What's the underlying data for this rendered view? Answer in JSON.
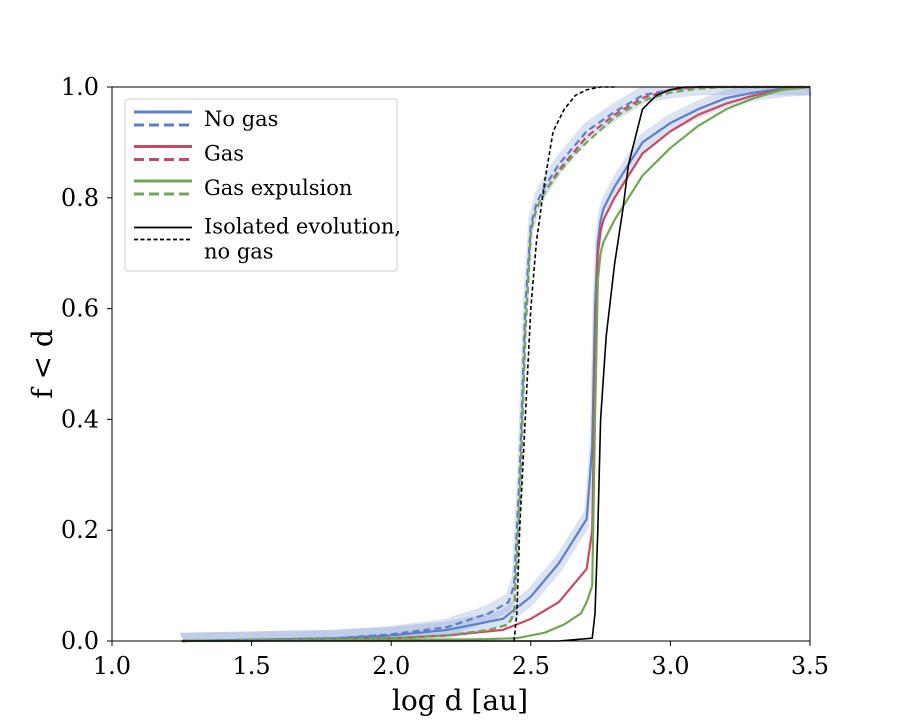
{
  "chart_data": {
    "type": "line",
    "title": "",
    "xlabel": "log d [au]",
    "ylabel": "f < d",
    "xlim": [
      1.0,
      3.5
    ],
    "ylim": [
      0.0,
      1.0
    ],
    "xticks": [
      "1.0",
      "1.5",
      "2.0",
      "2.5",
      "3.0",
      "3.5"
    ],
    "yticks": [
      "0.0",
      "0.2",
      "0.4",
      "0.6",
      "0.8",
      "1.0"
    ],
    "grid": false,
    "legend_position": "top-left",
    "legend": [
      {
        "label": "No gas",
        "color": "#5b7fc9"
      },
      {
        "label": "Gas",
        "color": "#c94a60"
      },
      {
        "label": "Gas expulsion",
        "color": "#6ea852"
      },
      {
        "label": "Isolated evolution,",
        "label2": "no gas",
        "color": "#000000"
      }
    ],
    "series": [
      {
        "name": "No gas (solid)",
        "color": "#5b7fc9",
        "style": "solid",
        "band": true,
        "x": [
          1.25,
          1.8,
          2.0,
          2.2,
          2.4,
          2.5,
          2.6,
          2.65,
          2.7,
          2.72,
          2.73,
          2.74,
          2.75,
          2.76,
          2.78,
          2.8,
          2.85,
          2.9,
          3.0,
          3.1,
          3.2,
          3.3,
          3.4,
          3.5
        ],
        "y": [
          0.0,
          0.005,
          0.01,
          0.02,
          0.04,
          0.08,
          0.14,
          0.18,
          0.22,
          0.35,
          0.6,
          0.72,
          0.76,
          0.78,
          0.8,
          0.82,
          0.86,
          0.9,
          0.935,
          0.96,
          0.98,
          0.99,
          0.997,
          1.0
        ]
      },
      {
        "name": "No gas (dashed)",
        "color": "#5b7fc9",
        "style": "dashed",
        "band": true,
        "x": [
          1.25,
          1.8,
          2.0,
          2.2,
          2.35,
          2.42,
          2.44,
          2.46,
          2.48,
          2.5,
          2.52,
          2.55,
          2.6,
          2.65,
          2.7,
          2.8,
          2.9,
          3.0,
          3.1,
          3.5
        ],
        "y": [
          0.0,
          0.005,
          0.012,
          0.025,
          0.05,
          0.07,
          0.1,
          0.3,
          0.6,
          0.75,
          0.79,
          0.82,
          0.86,
          0.89,
          0.92,
          0.955,
          0.985,
          0.995,
          1.0,
          1.0
        ]
      },
      {
        "name": "Gas (solid)",
        "color": "#c94a60",
        "style": "solid",
        "x": [
          1.25,
          1.8,
          2.0,
          2.2,
          2.4,
          2.5,
          2.6,
          2.65,
          2.7,
          2.72,
          2.73,
          2.74,
          2.75,
          2.76,
          2.78,
          2.8,
          2.85,
          2.9,
          3.0,
          3.1,
          3.2,
          3.3,
          3.4,
          3.5
        ],
        "y": [
          0.0,
          0.002,
          0.005,
          0.01,
          0.02,
          0.04,
          0.07,
          0.1,
          0.13,
          0.2,
          0.5,
          0.7,
          0.74,
          0.76,
          0.78,
          0.8,
          0.84,
          0.88,
          0.92,
          0.95,
          0.97,
          0.985,
          0.995,
          1.0
        ]
      },
      {
        "name": "Gas (dashed)",
        "color": "#c94a60",
        "style": "dashed",
        "x": [
          1.25,
          2.0,
          2.2,
          2.35,
          2.42,
          2.44,
          2.46,
          2.48,
          2.5,
          2.52,
          2.55,
          2.6,
          2.65,
          2.7,
          2.8,
          2.9,
          3.0,
          3.1,
          3.5
        ],
        "y": [
          0.0,
          0.005,
          0.01,
          0.02,
          0.03,
          0.05,
          0.25,
          0.55,
          0.74,
          0.78,
          0.81,
          0.85,
          0.88,
          0.91,
          0.95,
          0.98,
          0.995,
          1.0,
          1.0
        ]
      },
      {
        "name": "Gas expulsion (solid)",
        "color": "#6ea852",
        "style": "solid",
        "x": [
          1.25,
          2.0,
          2.3,
          2.45,
          2.55,
          2.62,
          2.68,
          2.7,
          2.72,
          2.73,
          2.74,
          2.75,
          2.76,
          2.78,
          2.8,
          2.85,
          2.9,
          3.0,
          3.1,
          3.2,
          3.3,
          3.4,
          3.5
        ],
        "y": [
          0.0,
          0.002,
          0.003,
          0.005,
          0.015,
          0.03,
          0.05,
          0.07,
          0.1,
          0.4,
          0.65,
          0.7,
          0.72,
          0.74,
          0.76,
          0.8,
          0.84,
          0.89,
          0.93,
          0.96,
          0.98,
          0.995,
          1.0
        ]
      },
      {
        "name": "Gas expulsion (dashed)",
        "color": "#6ea852",
        "style": "dashed",
        "x": [
          1.25,
          2.0,
          2.2,
          2.35,
          2.42,
          2.44,
          2.46,
          2.48,
          2.5,
          2.52,
          2.55,
          2.6,
          2.65,
          2.7,
          2.8,
          2.9,
          3.0,
          3.1,
          3.2,
          3.5
        ],
        "y": [
          0.0,
          0.005,
          0.01,
          0.02,
          0.03,
          0.05,
          0.25,
          0.55,
          0.74,
          0.78,
          0.81,
          0.845,
          0.875,
          0.9,
          0.945,
          0.975,
          0.99,
          0.997,
          1.0,
          1.0
        ]
      },
      {
        "name": "Isolated evolution, no gas (solid)",
        "color": "#000000",
        "style": "solid",
        "width": 1.6,
        "x": [
          1.25,
          2.6,
          2.72,
          2.73,
          2.74,
          2.75,
          2.77,
          2.8,
          2.83,
          2.85,
          2.88,
          2.9,
          2.95,
          3.0,
          3.05,
          3.5
        ],
        "y": [
          0.0,
          0.0,
          0.005,
          0.05,
          0.2,
          0.4,
          0.55,
          0.68,
          0.78,
          0.86,
          0.92,
          0.96,
          0.985,
          0.995,
          1.0,
          1.0
        ]
      },
      {
        "name": "Isolated evolution, no gas (dashed)",
        "color": "#000000",
        "style": "dashed",
        "width": 1.6,
        "x": [
          2.44,
          2.45,
          2.46,
          2.48,
          2.5,
          2.52,
          2.55,
          2.58,
          2.62,
          2.66,
          2.7,
          2.75,
          2.8
        ],
        "y": [
          0.0,
          0.05,
          0.2,
          0.4,
          0.6,
          0.72,
          0.83,
          0.92,
          0.96,
          0.985,
          0.995,
          1.0,
          1.0
        ]
      }
    ]
  }
}
